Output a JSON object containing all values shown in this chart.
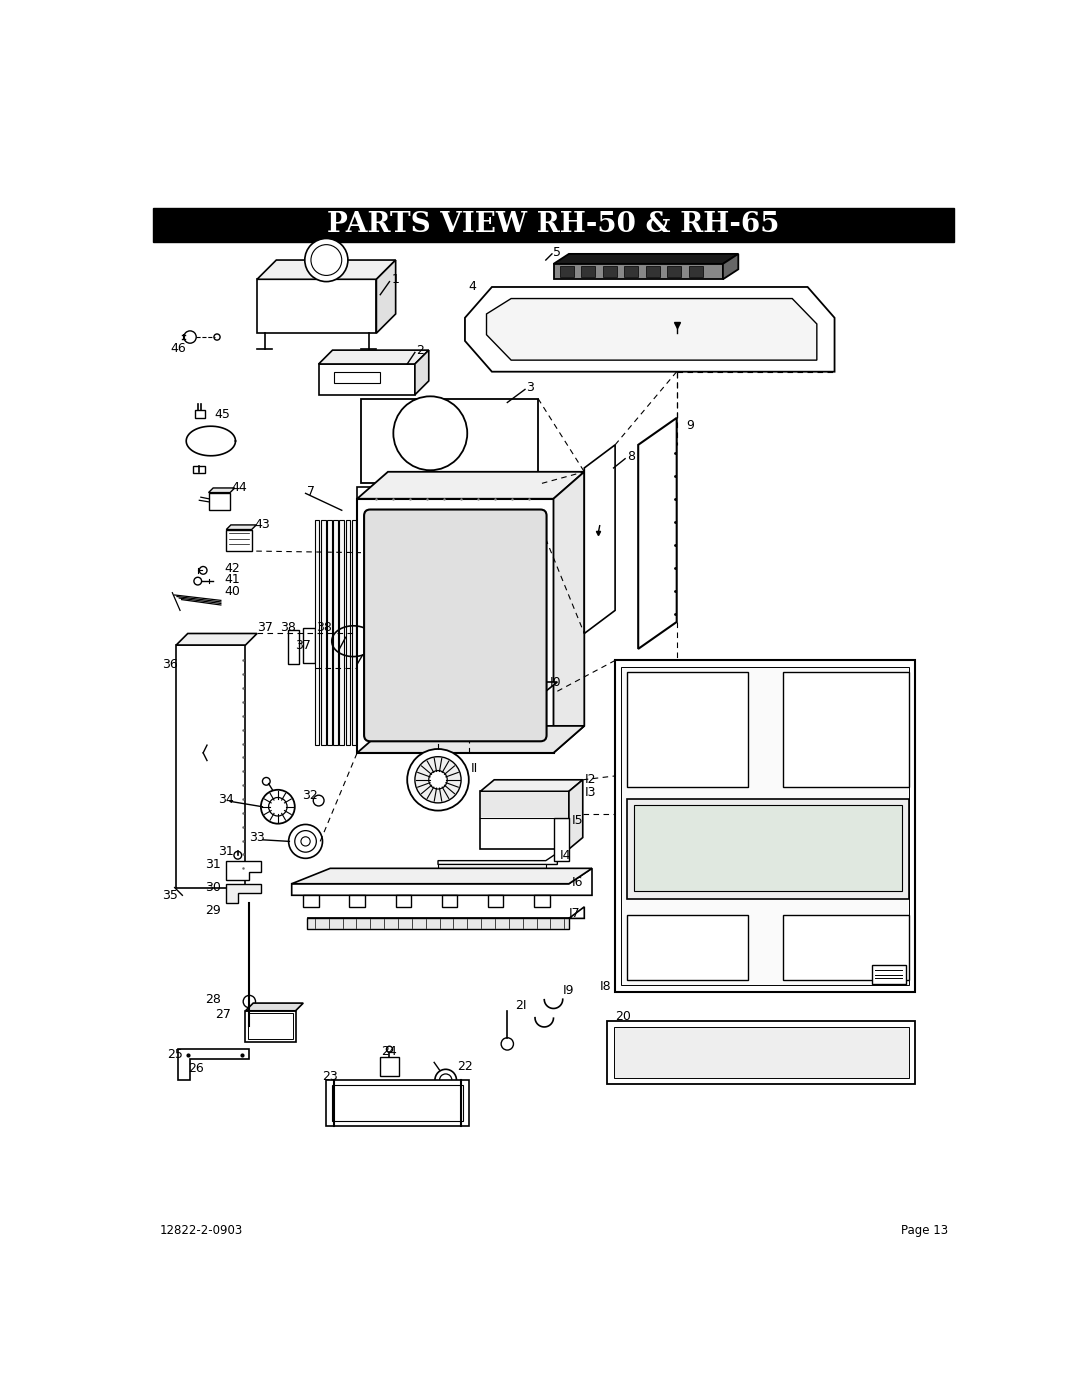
{
  "title": "PARTS VIEW RH-50 & RH-65",
  "footer_left": "12822-2-0903",
  "footer_right": "Page 13",
  "fig_width": 10.8,
  "fig_height": 13.97
}
